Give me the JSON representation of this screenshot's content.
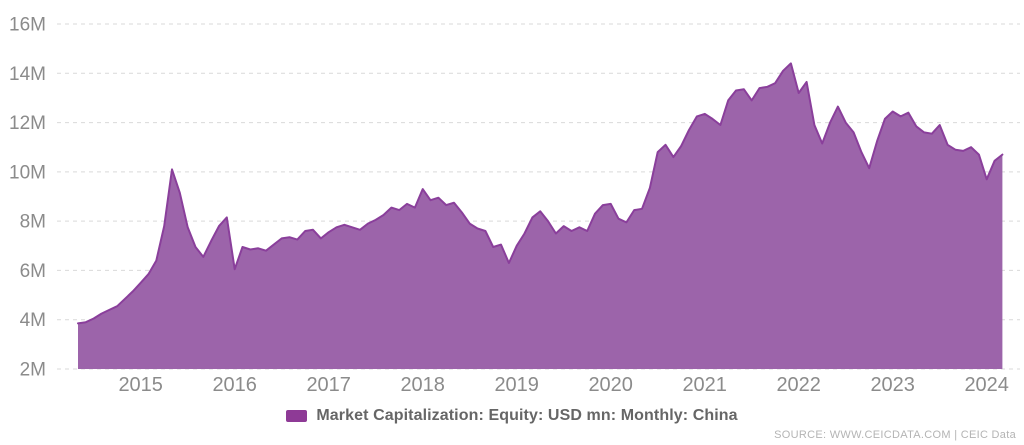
{
  "chart_data": {
    "type": "area",
    "title": "",
    "xlabel": "",
    "ylabel": "",
    "y_unit": "M (USD mn)",
    "ylim": [
      2,
      16
    ],
    "yticks": [
      2,
      4,
      6,
      8,
      10,
      12,
      14,
      16
    ],
    "y_tick_labels": [
      "2M",
      "4M",
      "6M",
      "8M",
      "10M",
      "12M",
      "14M",
      "16M"
    ],
    "x_tick_labels": [
      "2015",
      "2016",
      "2017",
      "2018",
      "2019",
      "2020",
      "2021",
      "2022",
      "2023",
      "2024"
    ],
    "x_start": "2014-05",
    "x_end": "2024-03",
    "frequency": "monthly",
    "grid": "horizontal-dashed",
    "legend_position": "bottom",
    "series": [
      {
        "name": "Market Capitalization: Equity: USD mn: Monthly: China",
        "values": [
          3.85,
          3.9,
          4.05,
          4.25,
          4.4,
          4.55,
          4.85,
          5.15,
          5.5,
          5.85,
          6.4,
          7.8,
          10.1,
          9.15,
          7.75,
          6.95,
          6.55,
          7.2,
          7.8,
          8.15,
          6.05,
          6.95,
          6.85,
          6.9,
          6.8,
          7.05,
          7.3,
          7.35,
          7.25,
          7.6,
          7.65,
          7.3,
          7.55,
          7.75,
          7.85,
          7.75,
          7.65,
          7.9,
          8.05,
          8.25,
          8.55,
          8.45,
          8.7,
          8.55,
          9.3,
          8.85,
          8.95,
          8.65,
          8.75,
          8.35,
          7.9,
          7.7,
          7.6,
          6.95,
          7.05,
          6.3,
          7.0,
          7.5,
          8.15,
          8.4,
          8.0,
          7.5,
          7.8,
          7.6,
          7.75,
          7.6,
          8.3,
          8.65,
          8.7,
          8.1,
          7.95,
          8.45,
          8.5,
          9.35,
          10.8,
          11.1,
          10.6,
          11.05,
          11.7,
          12.25,
          12.35,
          12.15,
          11.9,
          12.9,
          13.3,
          13.35,
          12.9,
          13.4,
          13.45,
          13.6,
          14.1,
          14.4,
          13.2,
          13.65,
          11.9,
          11.15,
          12.0,
          12.65,
          12.0,
          11.6,
          10.8,
          10.15,
          11.25,
          12.15,
          12.45,
          12.25,
          12.4,
          11.85,
          11.6,
          11.55,
          11.9,
          11.1,
          10.9,
          10.85,
          11.0,
          10.7,
          9.7,
          10.45,
          10.7
        ]
      }
    ],
    "colors": {
      "area_fill": "#9c64aa",
      "area_line": "#8a3f9b",
      "legend_swatch": "#8e3a96",
      "grid": "#d9d9d9",
      "tick_text": "#8b8b8b",
      "legend_text": "#666666",
      "source_text": "#b4b4b4"
    }
  },
  "source": {
    "text": "SOURCE: WWW.CEICDATA.COM | CEIC Data"
  }
}
